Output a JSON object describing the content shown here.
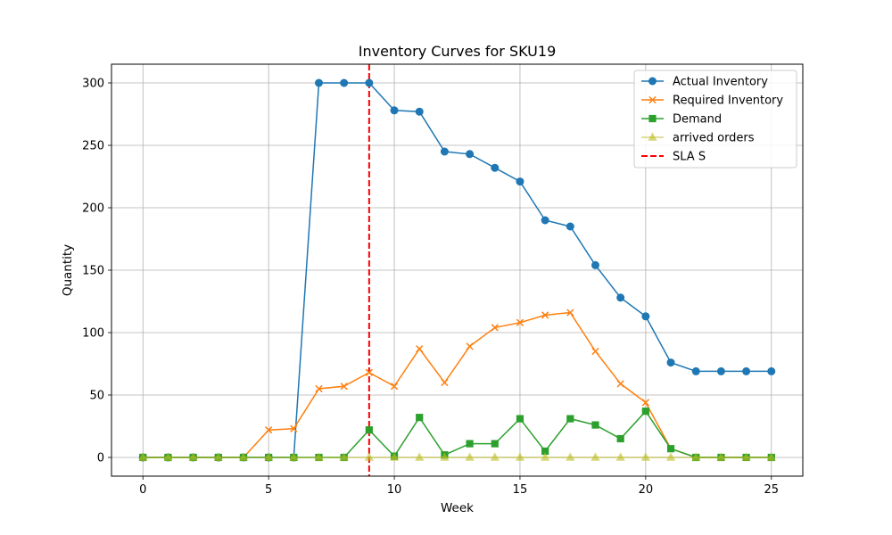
{
  "chart_data": {
    "type": "line",
    "title": "Inventory Curves for SKU19",
    "xlabel": "Week",
    "ylabel": "Quantity",
    "xlim": [
      -1.25,
      26.25
    ],
    "ylim": [
      -15,
      315
    ],
    "xticks": [
      0,
      5,
      10,
      15,
      20,
      25
    ],
    "yticks": [
      0,
      50,
      100,
      150,
      200,
      250,
      300
    ],
    "grid": true,
    "legend_position": "top-right",
    "x": [
      0,
      1,
      2,
      3,
      4,
      5,
      6,
      7,
      8,
      9,
      10,
      11,
      12,
      13,
      14,
      15,
      16,
      17,
      18,
      19,
      20,
      21,
      22,
      23,
      24,
      25
    ],
    "series": [
      {
        "name": "Actual Inventory",
        "color": "#1f77b4",
        "marker": "circle",
        "values": [
          0,
          0,
          0,
          0,
          0,
          0,
          0,
          300,
          300,
          300,
          278,
          277,
          245,
          243,
          232,
          221,
          190,
          185,
          154,
          128,
          113,
          76,
          69,
          69,
          69,
          69
        ]
      },
      {
        "name": "Required Inventory",
        "color": "#ff7f0e",
        "marker": "x",
        "values": [
          0,
          0,
          0,
          0,
          0,
          22,
          23,
          55,
          57,
          68,
          57,
          87,
          60,
          89,
          104,
          108,
          114,
          116,
          85,
          59,
          44,
          7,
          0,
          0,
          0,
          0
        ]
      },
      {
        "name": "Demand",
        "color": "#2ca02c",
        "marker": "square",
        "values": [
          0,
          0,
          0,
          0,
          0,
          0,
          0,
          0,
          0,
          22,
          1,
          32,
          2,
          11,
          11,
          31,
          5,
          31,
          26,
          15,
          37,
          7,
          0,
          0,
          0,
          0
        ]
      },
      {
        "name": "arrived orders",
        "color": "#bcbd22",
        "marker": "triangle",
        "values": [
          0,
          0,
          0,
          0,
          0,
          0,
          0,
          0,
          0,
          0,
          0,
          0,
          0,
          0,
          0,
          0,
          0,
          0,
          0,
          0,
          0,
          0,
          0,
          0,
          0,
          0
        ]
      }
    ],
    "vline": {
      "name": "SLA S",
      "x": 9,
      "color": "#ff0000",
      "style": "dashed"
    }
  }
}
